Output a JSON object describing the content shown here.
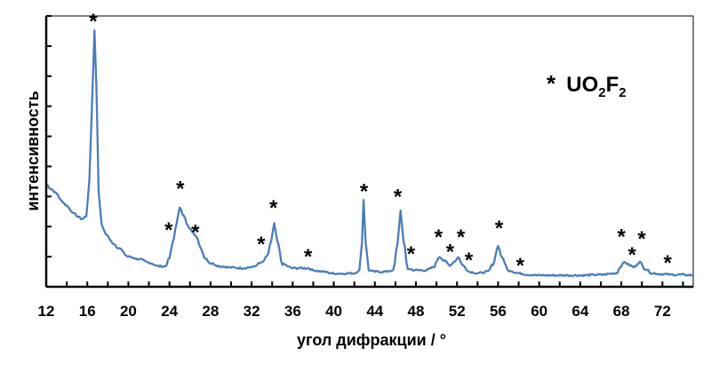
{
  "chart_data": {
    "type": "line",
    "title": "",
    "xlabel": "угол дифракции / °",
    "ylabel": "интенсивность",
    "xlim": [
      12,
      75
    ],
    "ylim": [
      0,
      9
    ],
    "x_ticks": [
      "12",
      "16",
      "20",
      "24",
      "28",
      "32",
      "36",
      "40",
      "44",
      "48",
      "52",
      "56",
      "60",
      "64",
      "68",
      "72"
    ],
    "y_tick_labels": false,
    "grid": false,
    "color": "#4a7ebb",
    "legend": {
      "marker": "*",
      "label_main": "UO",
      "sub1": "2",
      "label_mid": "F",
      "sub2": "2",
      "placement": "top-right"
    },
    "series": [
      {
        "x": [
          12,
          12.5,
          13,
          13.5,
          14,
          14.5,
          15,
          15.5,
          15.9,
          16.2,
          16.5,
          16.7,
          16.9,
          17.1,
          17.4,
          17.8,
          18.5,
          19,
          20,
          21,
          22,
          23,
          23.6,
          24,
          24.3,
          24.7,
          25,
          25.4,
          25.8,
          26.2,
          26.6,
          27,
          27.5,
          28,
          29,
          30,
          31,
          32,
          33,
          33.5,
          33.9,
          34.2,
          34.5,
          35,
          36,
          37,
          37.5,
          38,
          39,
          40,
          41,
          42,
          42.5,
          42.75,
          42.9,
          43.1,
          43.4,
          44,
          45,
          45.8,
          46.2,
          46.5,
          46.8,
          47.2,
          48,
          49,
          49.7,
          50.3,
          50.8,
          51.3,
          51.8,
          52.1,
          52.6,
          53.2,
          54,
          55,
          55.5,
          56,
          56.4,
          57,
          58,
          59,
          60,
          62,
          64,
          66,
          67.5,
          68,
          68.3,
          68.8,
          69.2,
          69.8,
          70.3,
          71,
          72,
          73,
          74,
          75
        ],
        "y": [
          3.4,
          3.25,
          3.1,
          2.85,
          2.7,
          2.5,
          2.35,
          2.25,
          2.35,
          3.5,
          6.5,
          8.53,
          6.5,
          3.2,
          2.05,
          1.75,
          1.45,
          1.3,
          1.0,
          0.92,
          0.8,
          0.68,
          0.68,
          0.95,
          1.45,
          2.1,
          2.65,
          2.35,
          2.0,
          1.85,
          1.7,
          1.3,
          0.95,
          0.78,
          0.68,
          0.64,
          0.62,
          0.65,
          0.8,
          1.0,
          1.5,
          2.09,
          1.5,
          0.75,
          0.62,
          0.62,
          0.62,
          0.55,
          0.5,
          0.44,
          0.44,
          0.45,
          0.55,
          1.5,
          2.9,
          1.5,
          0.55,
          0.5,
          0.5,
          0.55,
          1.4,
          2.53,
          1.5,
          0.6,
          0.55,
          0.55,
          0.65,
          1.0,
          0.85,
          0.72,
          0.85,
          0.98,
          0.7,
          0.5,
          0.45,
          0.5,
          0.75,
          1.35,
          0.95,
          0.55,
          0.45,
          0.4,
          0.38,
          0.38,
          0.38,
          0.4,
          0.45,
          0.7,
          0.82,
          0.72,
          0.65,
          0.82,
          0.6,
          0.45,
          0.42,
          0.4,
          0.4,
          0.38
        ]
      }
    ],
    "annotations": [
      {
        "text": "*",
        "x": 16.58,
        "y": 8.91
      },
      {
        "text": "*",
        "x": 23.93,
        "y": 1.97
      },
      {
        "text": "*",
        "x": 25.05,
        "y": 3.35
      },
      {
        "text": "*",
        "x": 26.52,
        "y": 1.91
      },
      {
        "text": "*",
        "x": 32.92,
        "y": 1.5
      },
      {
        "text": "*",
        "x": 34.13,
        "y": 2.71
      },
      {
        "text": "*",
        "x": 37.5,
        "y": 1.09
      },
      {
        "text": "*",
        "x": 42.94,
        "y": 3.26
      },
      {
        "text": "*",
        "x": 46.23,
        "y": 3.09
      },
      {
        "text": "*",
        "x": 47.52,
        "y": 1.18
      },
      {
        "text": "*",
        "x": 50.2,
        "y": 1.74
      },
      {
        "text": "*",
        "x": 51.33,
        "y": 1.26
      },
      {
        "text": "*",
        "x": 52.37,
        "y": 1.74
      },
      {
        "text": "*",
        "x": 53.15,
        "y": 0.97
      },
      {
        "text": "*",
        "x": 56.09,
        "y": 2.03
      },
      {
        "text": "*",
        "x": 58.15,
        "y": 0.79
      },
      {
        "text": "*",
        "x": 68.0,
        "y": 1.76
      },
      {
        "text": "*",
        "x": 69.04,
        "y": 1.15
      },
      {
        "text": "*",
        "x": 69.99,
        "y": 1.68
      },
      {
        "text": "*",
        "x": 72.5,
        "y": 0.88
      }
    ]
  }
}
